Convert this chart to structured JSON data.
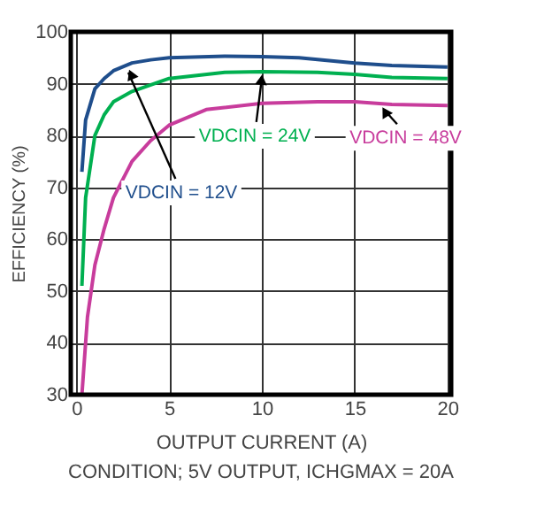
{
  "chart_data": {
    "type": "line",
    "xlabel": "OUTPUT CURRENT (A)",
    "ylabel": "EFFICIENCY (%)",
    "xlim": [
      -0.3,
      20.2
    ],
    "xticks": [
      0,
      5,
      10,
      15,
      20
    ],
    "ylim": [
      30,
      100
    ],
    "yticks": [
      30,
      40,
      50,
      60,
      70,
      80,
      90,
      100
    ],
    "grid": true,
    "marker": "none",
    "line_style": "solid",
    "series": [
      {
        "color": "#1f4e8c",
        "x": [
          0.3,
          0.5,
          1,
          1.5,
          2,
          3,
          4,
          5,
          8,
          10,
          12,
          15,
          17,
          20
        ],
        "values": [
          73,
          83,
          89,
          91,
          92.5,
          94,
          94.6,
          95,
          95.3,
          95.2,
          95,
          94,
          93.5,
          93.2
        ]
      },
      {
        "color": "#00b050",
        "x": [
          0.3,
          0.5,
          1,
          1.5,
          2,
          3,
          5,
          8,
          10,
          13,
          15,
          17,
          20
        ],
        "values": [
          51,
          68,
          80,
          84,
          86.5,
          88.5,
          91,
          92.2,
          92.3,
          92.2,
          91.8,
          91.2,
          91
        ]
      },
      {
        "color": "#c83c9c",
        "x": [
          0.3,
          0.6,
          1,
          1.5,
          2,
          3,
          4,
          5,
          7,
          10,
          13,
          15,
          17,
          20
        ],
        "values": [
          30,
          45,
          55,
          62,
          68,
          75,
          79,
          82,
          85,
          86.2,
          86.5,
          86.5,
          86,
          85.8
        ]
      }
    ],
    "annotations": [
      {
        "text": "VDCIN = 12V",
        "x": 2.8,
        "y": 93.5
      },
      {
        "text": "VDCIN = 24V",
        "x": 10,
        "y": 92.5
      },
      {
        "text": "VDCIN = 48V",
        "x": 16.6,
        "y": 86.3
      },
      "CONDITION; 5V OUTPUT, ICHGMAX = 20A"
    ]
  }
}
